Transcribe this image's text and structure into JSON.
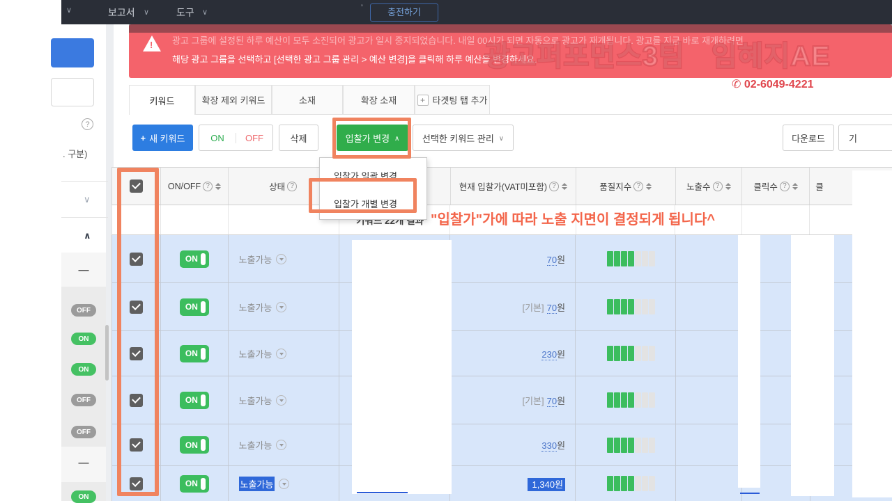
{
  "icons": {
    "help": "?",
    "caret_down": "∨",
    "caret_up": "∧",
    "plus": "+",
    "warning_bang": "!",
    "phone": "✆",
    "minus": "—",
    "tick": "’"
  },
  "navbar": {
    "left_caret": "∨",
    "menus": [
      {
        "label": "보고서"
      },
      {
        "label": "도구"
      }
    ],
    "charge_button": "충전하기"
  },
  "sidebar": {
    "partial_text": ". 구분)",
    "items": [
      {
        "label": "—"
      },
      {
        "label": "OFF"
      },
      {
        "label": "ON"
      },
      {
        "label": "ON"
      },
      {
        "label": "OFF"
      },
      {
        "label": "OFF"
      },
      {
        "label": "—"
      },
      {
        "label": "ON"
      }
    ]
  },
  "alert": {
    "line1": "광고 그룹에 설정된 하루 예산이 모두 소진되어 광고가 일시 중지되었습니다. 내일 00시가 되면 자동으로 광고가 재개됩니다. 광고를 지금 바로 재개하려면",
    "line2": "해당 광고 그룹을 선택하고 [선택한 광고 그룹 관리 > 예산 변경]을 클릭해 하루 예산을 변경하세요."
  },
  "watermark": {
    "team": "광고퍼포먼스3팀",
    "name": "임혜지AE",
    "phone": "02-6049-4221"
  },
  "tabs": [
    {
      "label": "키워드",
      "active": true
    },
    {
      "label": "확장 제외 키워드",
      "active": false
    },
    {
      "label": "소재",
      "active": false
    },
    {
      "label": "확장 소재",
      "active": false
    },
    {
      "label": "타겟팅 탭 추가",
      "active": false
    }
  ],
  "toolbar": {
    "new_keyword": "새 키워드",
    "on": "ON",
    "off": "OFF",
    "delete": "삭제",
    "bid_change": "입찰가 변경",
    "manage_selected": "선택한 키워드 관리",
    "download": "다운로드",
    "partial_button": "기"
  },
  "dropdown": {
    "items": [
      {
        "label": "입찰가 일괄 변경"
      },
      {
        "label": "입찰가 개별 변경"
      }
    ]
  },
  "table": {
    "result_count": "키워드 22개 결과",
    "annotation": "\"입찰가\"가에 따라 노출 지면이 결정되게 됩니다^",
    "headers": [
      {
        "label": ""
      },
      {
        "label": "ON/OFF"
      },
      {
        "label": "상태"
      },
      {
        "label": ""
      },
      {
        "label": "현재 입찰가(VAT미포함)"
      },
      {
        "label": "품질지수"
      },
      {
        "label": "노출수"
      },
      {
        "label": "클릭수"
      },
      {
        "label": "클"
      }
    ],
    "rows": [
      {
        "checked": true,
        "toggle": "ON",
        "status": "노출가능",
        "bid_prefix": "",
        "bid_value": "70",
        "bid_unit": "원",
        "quality": 4,
        "quality_total": 7,
        "selected": false
      },
      {
        "checked": true,
        "toggle": "ON",
        "status": "노출가능",
        "bid_prefix": "[기본]",
        "bid_value": "70",
        "bid_unit": "원",
        "quality": 4,
        "quality_total": 7,
        "selected": false
      },
      {
        "checked": true,
        "toggle": "ON",
        "status": "노출가능",
        "bid_prefix": "",
        "bid_value": "230",
        "bid_unit": "원",
        "quality": 4,
        "quality_total": 7,
        "selected": false
      },
      {
        "checked": true,
        "toggle": "ON",
        "status": "노출가능",
        "bid_prefix": "[기본]",
        "bid_value": "70",
        "bid_unit": "원",
        "quality": 4,
        "quality_total": 7,
        "selected": false
      },
      {
        "checked": true,
        "toggle": "ON",
        "status": "노출가능",
        "bid_prefix": "",
        "bid_value": "330",
        "bid_unit": "원",
        "quality": 4,
        "quality_total": 7,
        "selected": false
      },
      {
        "checked": true,
        "toggle": "ON",
        "status": "노출가능",
        "bid_prefix": "",
        "bid_value": "1,340",
        "bid_unit": "원",
        "quality": 4,
        "quality_total": 7,
        "selected": true
      }
    ]
  }
}
